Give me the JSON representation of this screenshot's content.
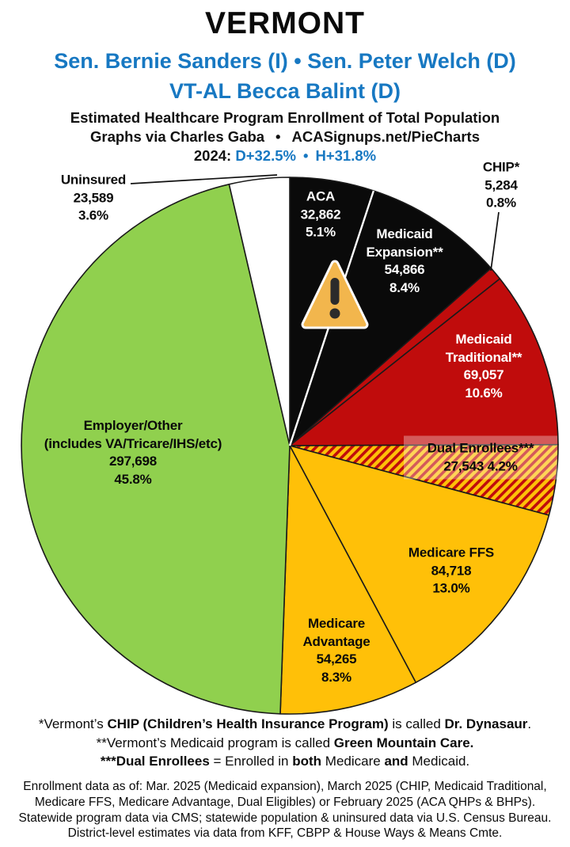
{
  "header": {
    "title": "VERMONT",
    "senators": "Sen. Bernie Sanders (I) • Sen. Peter Welch (D)",
    "representative": "VT-AL Becca Balint (D)",
    "subtitle": "Estimated Healthcare Program Enrollment of Total Population",
    "credit_left": "Graphs via Charles Gaba",
    "credit_sep": "•",
    "credit_right": "ACASignups.net/PieCharts",
    "partisan_year": "2024:",
    "partisan_d": "D+32.5%",
    "partisan_sep": "•",
    "partisan_h": "H+31.8%"
  },
  "colors": {
    "accent_blue": "#1778C2",
    "black_slice": "#0a0a0a",
    "red_slice": "#C00C0C",
    "gold_slice": "#FFC008",
    "green_slice": "#90D04E",
    "white_slice": "#FFFFFF",
    "hatch_base": "#FFC008",
    "hatch_stripe": "#C00C0C",
    "slice_stroke": "#1a1a1a",
    "white_divider": "#FFFFFF",
    "warning_fill": "#F2B64D",
    "warning_mark": "#2B2B2B"
  },
  "chart_data": {
    "type": "pie",
    "title": "Estimated Healthcare Program Enrollment of Total Population — Vermont",
    "start_angle_deg": 0,
    "direction": "clockwise",
    "total": 649882,
    "legend_position": "none",
    "slices": [
      {
        "name": "ACA",
        "value": 32862,
        "pct": 5.1,
        "color_key": "black_slice",
        "label_color": "#FFFFFF",
        "label_lines": [
          "ACA",
          "32,862",
          "5.1%"
        ]
      },
      {
        "name": "Medicaid Expansion",
        "value": 54866,
        "pct": 8.4,
        "color_key": "black_slice",
        "label_color": "#FFFFFF",
        "label_lines": [
          "Medicaid",
          "Expansion**",
          "54,866",
          "8.4%"
        ]
      },
      {
        "name": "CHIP",
        "value": 5284,
        "pct": 0.8,
        "color_key": "red_slice",
        "label_color": "#0a0a0a",
        "label_outside": true,
        "label_lines": [
          "CHIP*",
          "5,284",
          "0.8%"
        ]
      },
      {
        "name": "Medicaid Traditional",
        "value": 69057,
        "pct": 10.6,
        "color_key": "red_slice",
        "label_color": "#FFFFFF",
        "label_lines": [
          "Medicaid",
          "Traditional**",
          "69,057",
          "10.6%"
        ]
      },
      {
        "name": "Dual Enrollees",
        "value": 27543,
        "pct": 4.2,
        "color_key": "hatch",
        "label_color": "#0a0a0a",
        "label_lines": [
          "Dual Enrollees***",
          "27,543 4.2%"
        ]
      },
      {
        "name": "Medicare FFS",
        "value": 84718,
        "pct": 13.0,
        "color_key": "gold_slice",
        "label_color": "#0a0a0a",
        "label_lines": [
          "Medicare FFS",
          "84,718",
          "13.0%"
        ]
      },
      {
        "name": "Medicare Advantage",
        "value": 54265,
        "pct": 8.3,
        "color_key": "gold_slice",
        "label_color": "#0a0a0a",
        "label_lines": [
          "Medicare",
          "Advantage",
          "54,265",
          "8.3%"
        ]
      },
      {
        "name": "Employer/Other",
        "value": 297698,
        "pct": 45.8,
        "color_key": "green_slice",
        "label_color": "#0a0a0a",
        "label_lines": [
          "Employer/Other",
          "(includes VA/Tricare/IHS/etc)",
          "297,698",
          "45.8%"
        ]
      },
      {
        "name": "Uninsured",
        "value": 23589,
        "pct": 3.6,
        "color_key": "white_slice",
        "label_color": "#0a0a0a",
        "label_outside": true,
        "label_lines": [
          "Uninsured",
          "23,589",
          "3.6%"
        ]
      }
    ],
    "white_divider_after_slice": 0
  },
  "footnotes": [
    [
      {
        "t": "*Vermont’s ",
        "b": 0
      },
      {
        "t": "CHIP (Children’s Health Insurance Program)",
        "b": 1
      },
      {
        "t": " is called ",
        "b": 0
      },
      {
        "t": "Dr. Dynasaur",
        "b": 1
      },
      {
        "t": ".",
        "b": 0
      }
    ],
    [
      {
        "t": "**Vermont’s Medicaid program is called ",
        "b": 0
      },
      {
        "t": "Green Mountain Care.",
        "b": 1
      }
    ],
    [
      {
        "t": "***Dual Enrollees",
        "b": 1
      },
      {
        "t": " = Enrolled in ",
        "b": 0
      },
      {
        "t": "both",
        "b": 1
      },
      {
        "t": " Medicare ",
        "b": 0
      },
      {
        "t": "and",
        "b": 1
      },
      {
        "t": " Medicaid.",
        "b": 0
      }
    ]
  ],
  "source_lines": [
    "Enrollment data as of: Mar. 2025 (Medicaid expansion), March 2025 (CHIP, Medicaid Traditional,",
    "Medicare FFS, Medicare Advantage, Dual Eligibles) or February 2025 (ACA QHPs & BHPs).",
    "Statewide program data via CMS; statewide population & uninsured data via U.S. Census Bureau.",
    "District-level estimates via data from KFF, CBPP & House Ways & Means Cmte."
  ]
}
